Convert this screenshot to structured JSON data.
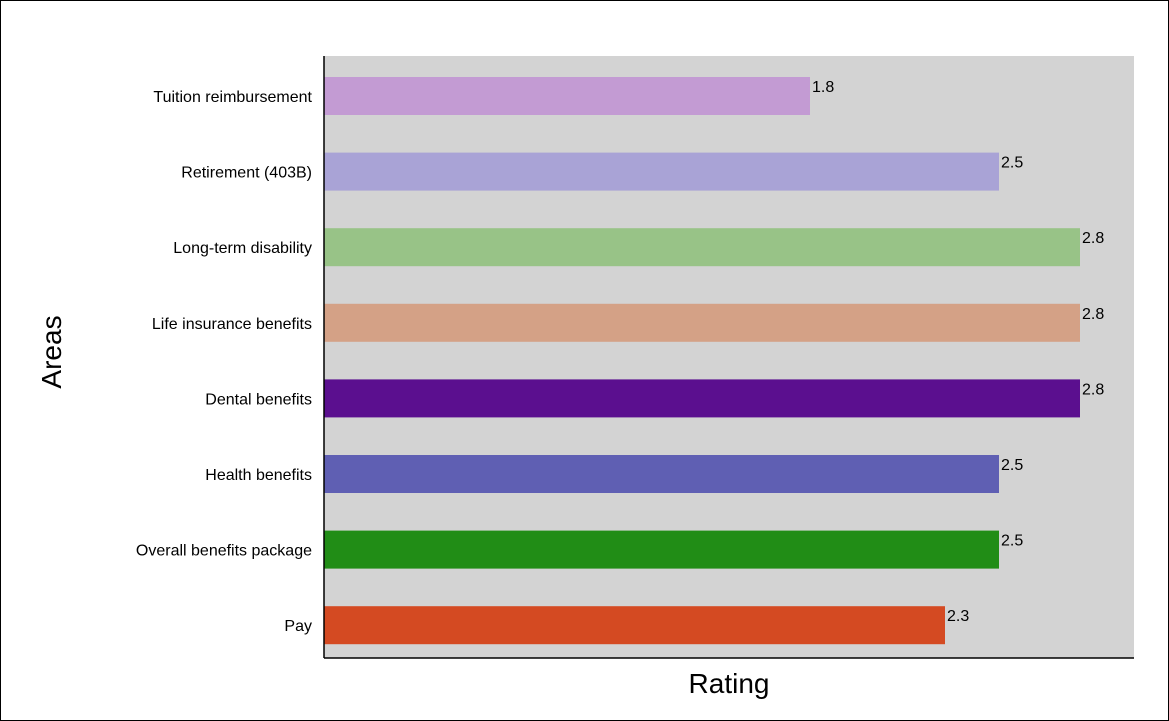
{
  "chart_data": {
    "type": "bar",
    "orientation": "horizontal",
    "xlabel": "Rating",
    "ylabel": "Areas",
    "xlim": [
      0,
      3.0
    ],
    "grid": false,
    "categories": [
      "Tuition reimbursement",
      "Retirement (403B)",
      "Long-term disability",
      "Life insurance benefits",
      "Dental benefits",
      "Health benefits",
      "Overall benefits package",
      "Pay"
    ],
    "values": [
      1.8,
      2.5,
      2.8,
      2.8,
      2.8,
      2.5,
      2.5,
      2.3
    ],
    "colors": [
      "#c39bd3",
      "#a9a3d6",
      "#98c387",
      "#d4a186",
      "#5b0f8f",
      "#5f5fb3",
      "#218d16",
      "#d44a22"
    ],
    "plot_background": "#d3d3d3"
  }
}
